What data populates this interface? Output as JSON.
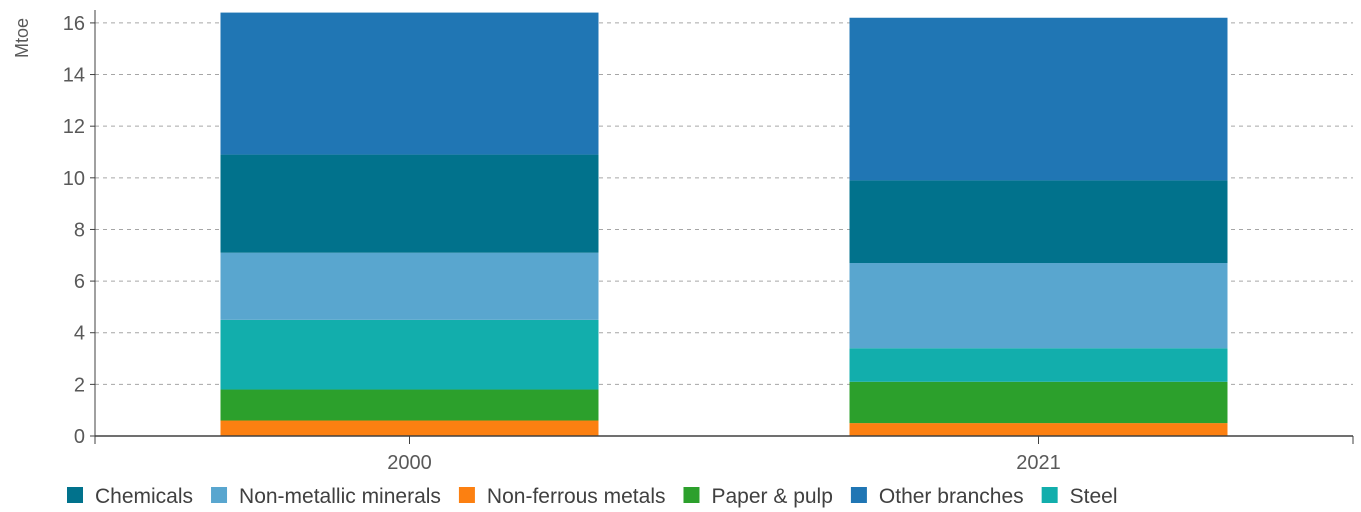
{
  "chart_data": {
    "type": "bar",
    "stacked": true,
    "title": "",
    "xlabel": "",
    "ylabel": "Mtoe",
    "ylim": [
      0,
      16
    ],
    "yticks": [
      0,
      2,
      4,
      6,
      8,
      10,
      12,
      14,
      16
    ],
    "categories": [
      "2000",
      "2021"
    ],
    "grid": "horizontal-dashed",
    "legend_position": "bottom",
    "series": [
      {
        "name": "Non-ferrous metals",
        "color": "#fc8011",
        "values": [
          0.6,
          0.5
        ]
      },
      {
        "name": "Paper & pulp",
        "color": "#2ca02c",
        "values": [
          1.2,
          1.6
        ]
      },
      {
        "name": "Steel",
        "color": "#12aeac",
        "values": [
          2.7,
          1.3
        ]
      },
      {
        "name": "Non-metallic minerals",
        "color": "#59a6cf",
        "values": [
          2.6,
          3.3
        ]
      },
      {
        "name": "Chemicals",
        "color": "#01728c",
        "values": [
          3.8,
          3.2
        ]
      },
      {
        "name": "Other branches",
        "color": "#2076b4",
        "values": [
          5.5,
          6.3
        ]
      }
    ],
    "legend_order": [
      "Chemicals",
      "Non-metallic minerals",
      "Non-ferrous metals",
      "Paper & pulp",
      "Other branches",
      "Steel"
    ]
  }
}
